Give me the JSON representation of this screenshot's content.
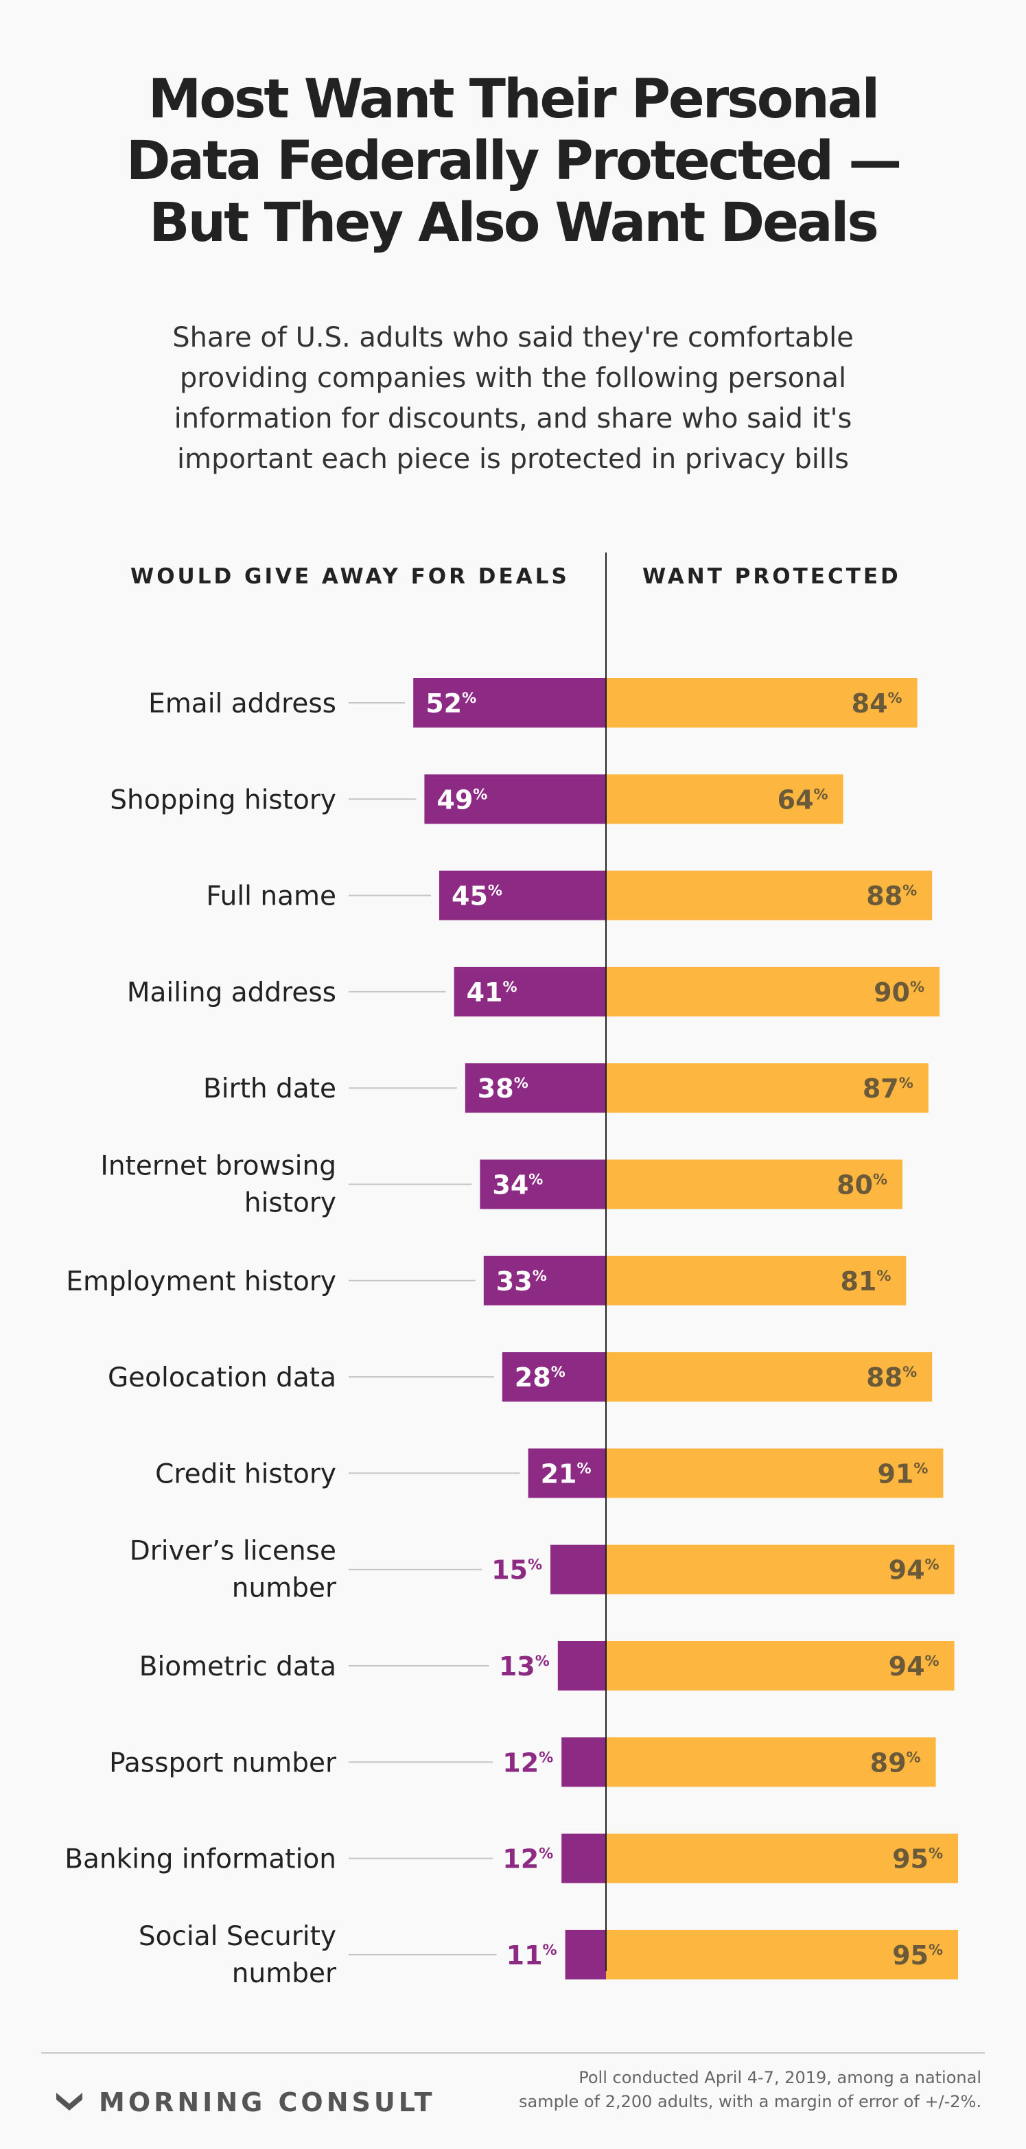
{
  "title_lines": [
    "Most Want Their Personal",
    "Data Federally Protected —",
    "But They Also Want Deals"
  ],
  "subtitle_lines": [
    "Share of U.S. adults who said they're comfortable",
    "providing companies with the following personal",
    "information for discounts, and share who said it's",
    "important each piece is protected in privacy bills"
  ],
  "colors": {
    "deals": "#8c2a84",
    "protected": "#fdb740",
    "protected_label": "#6b5a3a",
    "axis": "#222222",
    "leader": "#c5c5c5"
  },
  "chart_data": {
    "type": "bar",
    "orientation": "horizontal-diverging",
    "unit": "%",
    "categories": [
      "Email address",
      "Shopping history",
      "Full name",
      "Mailing address",
      "Birth date",
      "Internet browsing history",
      "Employment history",
      "Geolocation data",
      "Credit history",
      "Driver’s license number",
      "Biometric data",
      "Passport number",
      "Banking information",
      "Social Security number"
    ],
    "category_lines": [
      [
        "Email address"
      ],
      [
        "Shopping history"
      ],
      [
        "Full name"
      ],
      [
        "Mailing address"
      ],
      [
        "Birth date"
      ],
      [
        "Internet browsing",
        "history"
      ],
      [
        "Employment history"
      ],
      [
        "Geolocation data"
      ],
      [
        "Credit history"
      ],
      [
        "Driver’s license",
        "number"
      ],
      [
        "Biometric data"
      ],
      [
        "Passport number"
      ],
      [
        "Banking information"
      ],
      [
        "Social Security",
        "number"
      ]
    ],
    "series": [
      {
        "name": "WOULD GIVE AWAY FOR DEALS",
        "values": [
          52,
          49,
          45,
          41,
          38,
          34,
          33,
          28,
          21,
          15,
          13,
          12,
          12,
          11
        ]
      },
      {
        "name": "WANT PROTECTED",
        "values": [
          84,
          64,
          88,
          90,
          87,
          80,
          81,
          88,
          91,
          94,
          94,
          89,
          95,
          95
        ]
      }
    ],
    "xlim": [
      0,
      100
    ],
    "grid": false,
    "legend": "column headers above each side"
  },
  "footer": {
    "brand": "MORNING CONSULT",
    "logo_icon": "mc-logo-icon",
    "note_lines": [
      "Poll conducted April 4-7, 2019, among a national",
      "sample of 2,200 adults, with a margin of error of +/-2%."
    ]
  }
}
